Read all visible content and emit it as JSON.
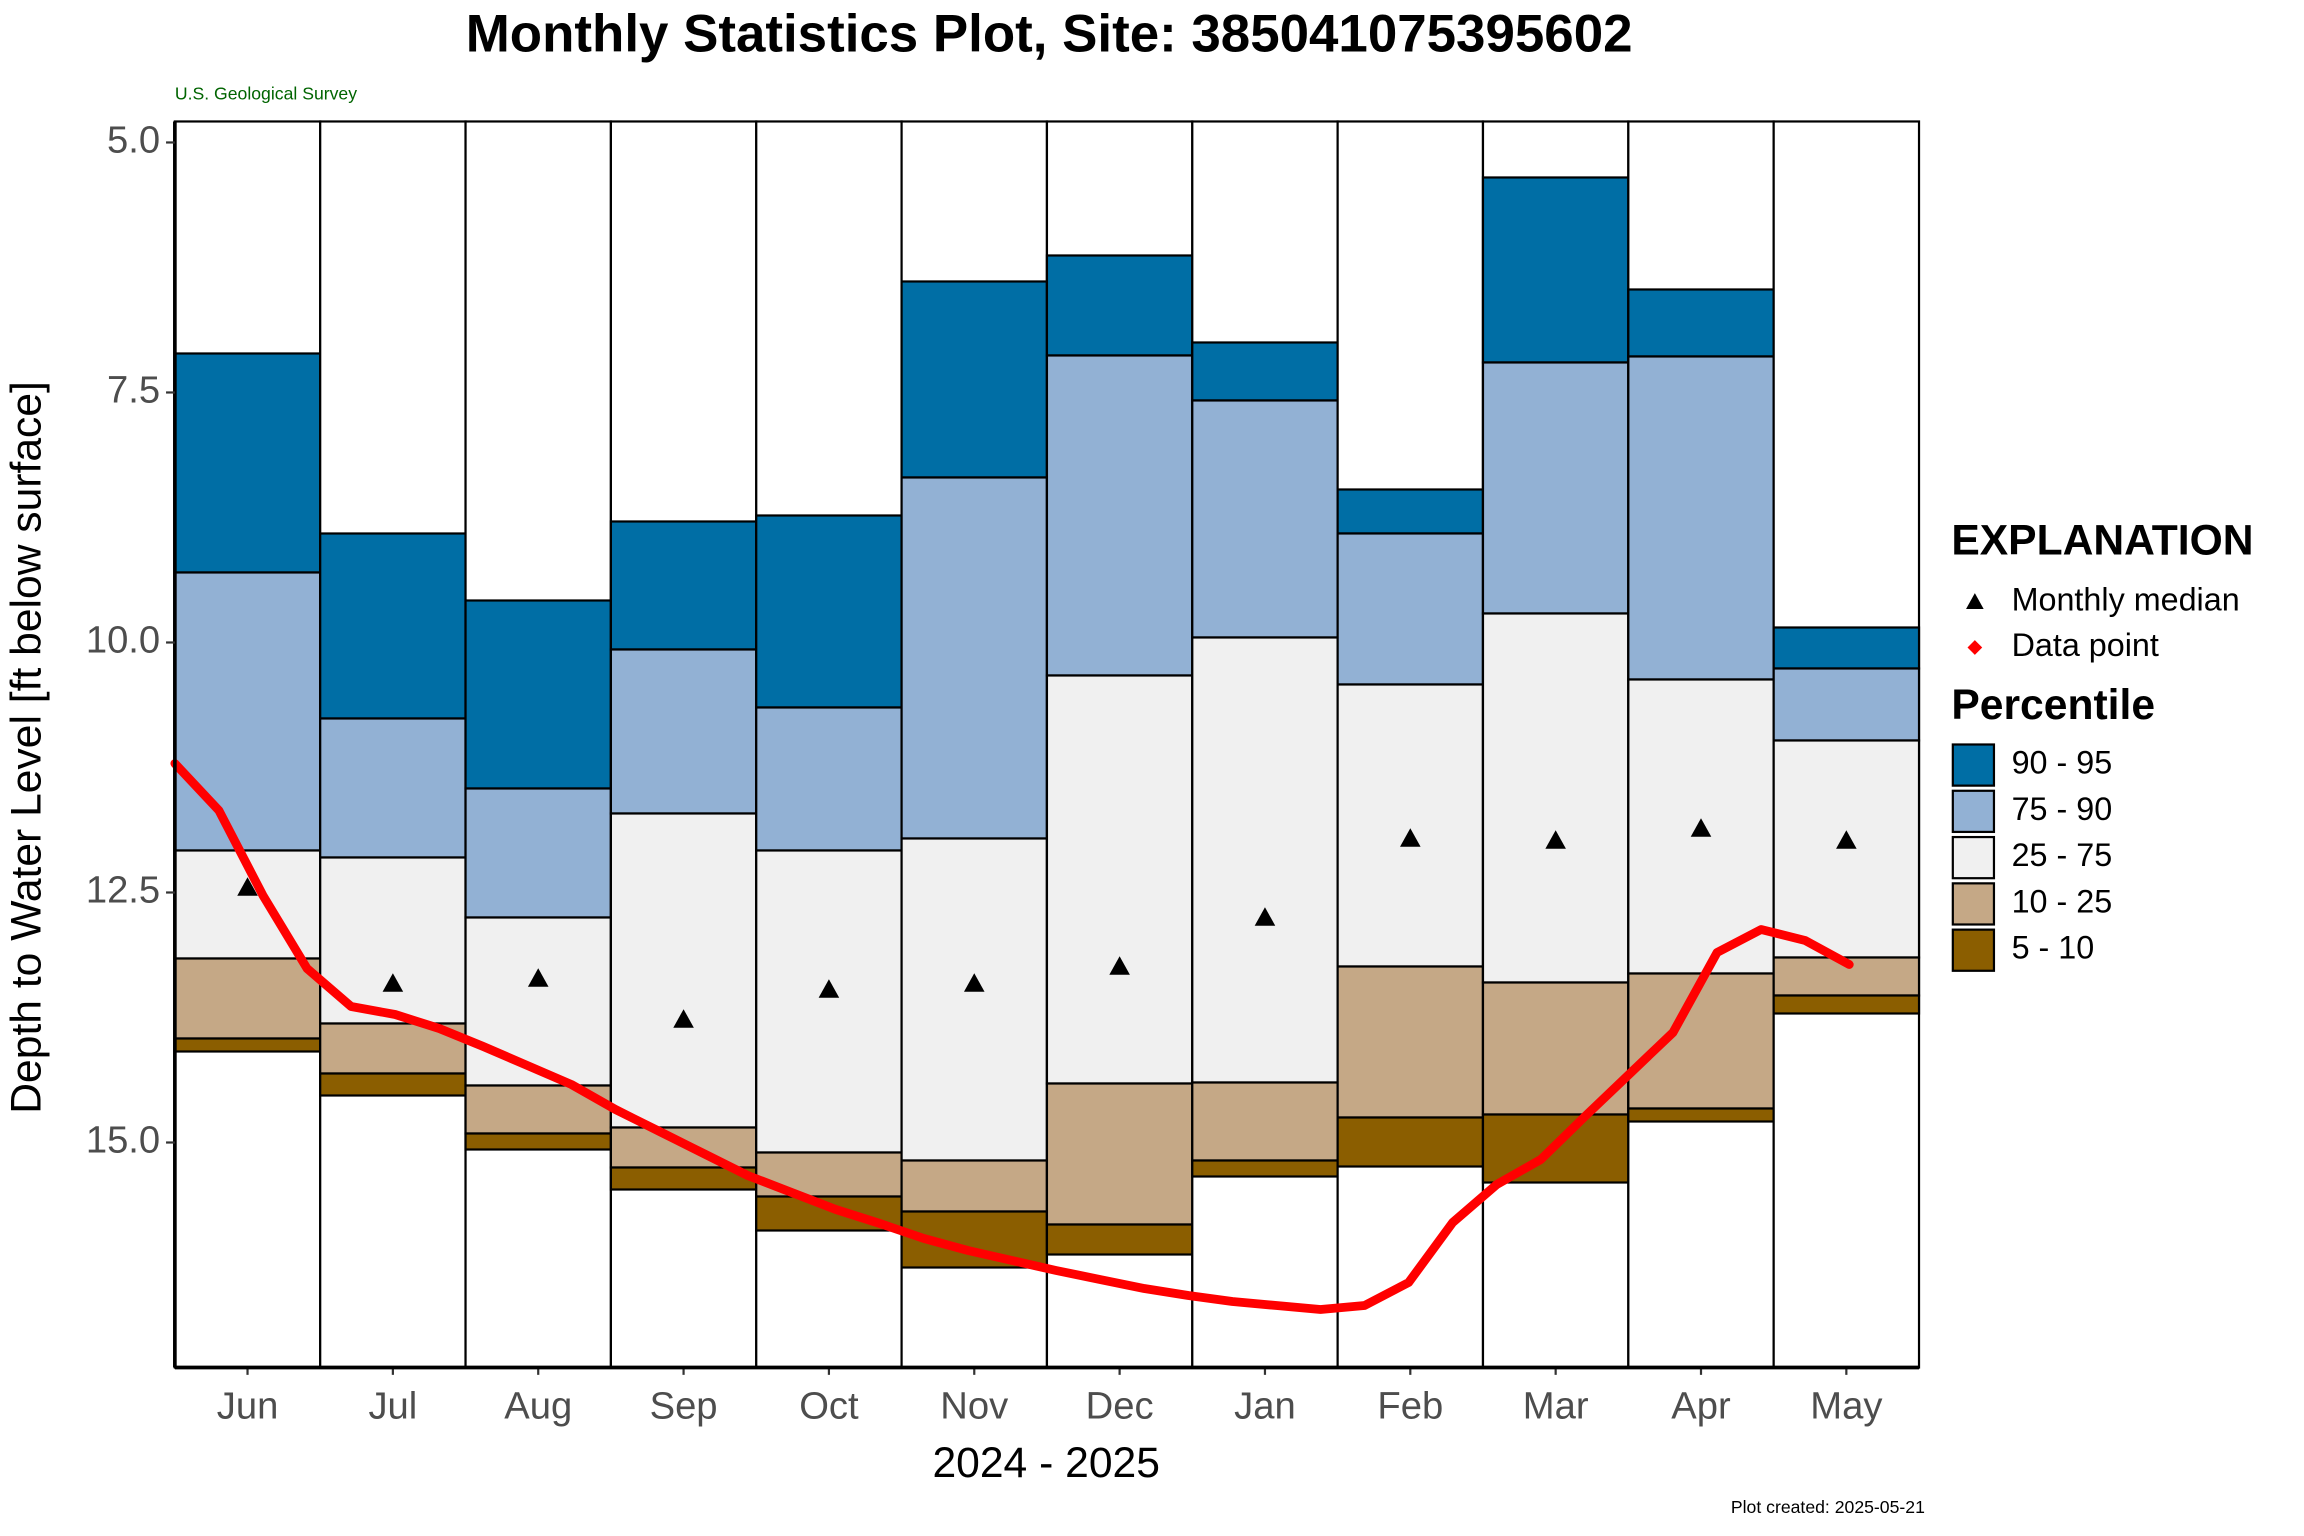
{
  "chart_data": {
    "type": "percentile_boxes",
    "title": "Monthly Statistics Plot, Site: 385041075395602",
    "subtitle": "U.S. Geological Survey",
    "y_label": "Depth to Water Level [ft below surface]",
    "x_label": "2024 - 2025",
    "note": "Plot created: 2025-05-21",
    "legend_title": "EXPLANATION",
    "legend_percentile_title": "Percentile",
    "categories": [
      "Jun",
      "Jul",
      "Aug",
      "Sep",
      "Oct",
      "Nov",
      "Dec",
      "Jan",
      "Feb",
      "Mar",
      "Apr",
      "May"
    ],
    "ylim": [
      17.25,
      4.79
    ],
    "yticks": [
      {
        "value": 5,
        "label": "5.0"
      },
      {
        "value": 7.5,
        "label": "7.5"
      },
      {
        "value": 10,
        "label": "10.0"
      },
      {
        "value": 12.5,
        "label": "12.5"
      },
      {
        "value": 15,
        "label": "15.0"
      }
    ],
    "levels": [
      {
        "values": [
          7.11,
          8.91,
          9.58,
          8.79,
          8.73,
          6.39,
          6.13,
          7.0,
          8.47,
          5.35,
          6.47,
          9.85
        ]
      },
      {
        "values": [
          9.3,
          10.76,
          11.46,
          10.07,
          10.65,
          8.35,
          7.13,
          7.58,
          8.91,
          7.2,
          7.14,
          10.26
        ]
      },
      {
        "values": [
          12.08,
          12.15,
          12.75,
          11.71,
          12.08,
          11.96,
          10.33,
          9.95,
          10.42,
          9.71,
          10.37,
          10.98
        ]
      },
      {
        "values": [
          13.16,
          13.81,
          14.43,
          14.85,
          15.1,
          15.18,
          14.41,
          14.4,
          13.24,
          13.4,
          13.31,
          13.15
        ]
      },
      {
        "values": [
          13.96,
          14.31,
          14.91,
          15.25,
          15.54,
          15.69,
          15.82,
          15.18,
          14.75,
          14.72,
          14.66,
          13.53
        ]
      },
      {
        "values": [
          14.09,
          14.53,
          15.07,
          15.47,
          15.88,
          16.25,
          16.12,
          15.34,
          15.24,
          15.4,
          14.79,
          13.71
        ]
      }
    ],
    "bands": [
      {
        "name": "90 - 95",
        "color": "#006ea5"
      },
      {
        "name": "75 - 90",
        "color": "#92b1d4"
      },
      {
        "name": "25 - 75",
        "color": "#f0f0f0"
      },
      {
        "name": "10 - 25",
        "color": "#c5a886"
      },
      {
        "name": "5 - 10",
        "color": "#8b5e00"
      }
    ],
    "series": [
      {
        "name": "Monthly median",
        "color": "#000000",
        "values": [
          12.45,
          13.41,
          13.36,
          13.77,
          13.47,
          13.41,
          13.24,
          12.75,
          11.96,
          11.98,
          11.86,
          11.98
        ]
      },
      {
        "name": "Data point",
        "color": "#ff0000",
        "values": [
          11.21,
          11.68,
          12.53,
          13.26,
          13.64,
          13.72,
          13.86,
          14.04,
          14.23,
          14.42,
          14.67,
          14.89,
          15.11,
          15.33,
          15.5,
          15.67,
          15.81,
          15.96,
          16.08,
          16.18,
          16.28,
          16.37,
          16.46,
          16.53,
          16.59,
          16.63,
          16.67,
          16.63,
          16.4,
          15.8,
          15.42,
          15.17,
          14.74,
          14.32,
          13.9,
          13.1,
          12.87,
          12.98,
          13.22
        ]
      }
    ]
  }
}
